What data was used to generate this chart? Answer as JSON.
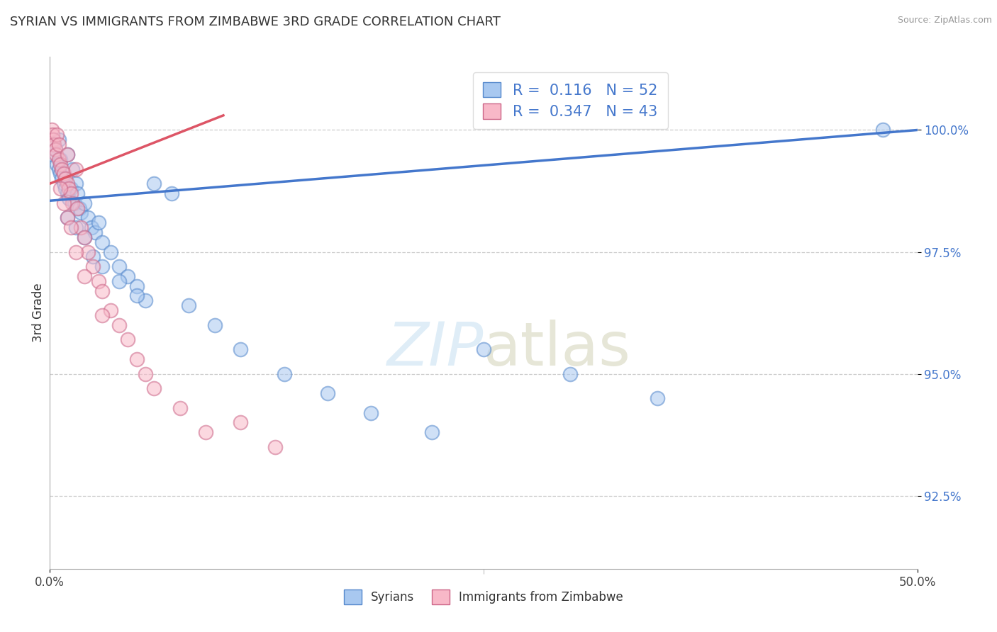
{
  "title": "SYRIAN VS IMMIGRANTS FROM ZIMBABWE 3RD GRADE CORRELATION CHART",
  "source": "Source: ZipAtlas.com",
  "ylabel": "3rd Grade",
  "ytick_values": [
    92.5,
    95.0,
    97.5,
    100.0
  ],
  "ylim_min": 91.0,
  "ylim_max": 101.5,
  "xlim_min": 0.0,
  "xlim_max": 50.0,
  "color_blue_fill": "#a8c8f0",
  "color_blue_edge": "#5588cc",
  "color_pink_fill": "#f8b8c8",
  "color_pink_edge": "#cc6688",
  "color_blue_line": "#4477cc",
  "color_pink_line": "#dd5566",
  "blue_line_x0": 0.0,
  "blue_line_y0": 98.55,
  "blue_line_x1": 50.0,
  "blue_line_y1": 100.0,
  "pink_line_x0": 0.0,
  "pink_line_y0": 98.9,
  "pink_line_x1": 10.0,
  "pink_line_y1": 100.3,
  "watermark_zip": "ZIP",
  "watermark_atlas": "atlas",
  "legend_label1": "R =  0.116   N = 52",
  "legend_label2": "R =  0.347   N = 43",
  "bottom_label1": "Syrians",
  "bottom_label2": "Immigrants from Zimbabwe",
  "syrians_x": [
    0.15,
    0.2,
    0.3,
    0.4,
    0.5,
    0.5,
    0.6,
    0.6,
    0.7,
    0.8,
    0.9,
    1.0,
    1.0,
    1.1,
    1.2,
    1.3,
    1.4,
    1.5,
    1.6,
    1.7,
    1.8,
    2.0,
    2.2,
    2.4,
    2.6,
    2.8,
    3.0,
    3.5,
    4.0,
    4.5,
    5.0,
    5.5,
    6.0,
    7.0,
    8.0,
    9.5,
    11.0,
    13.5,
    16.0,
    18.5,
    22.0,
    25.0,
    30.0,
    35.0,
    48.0,
    1.0,
    1.5,
    2.0,
    2.5,
    3.0,
    4.0,
    5.0
  ],
  "syrians_y": [
    99.5,
    99.7,
    99.6,
    99.3,
    99.8,
    99.2,
    99.4,
    99.1,
    99.0,
    98.9,
    98.8,
    98.7,
    99.5,
    98.6,
    98.8,
    99.2,
    98.5,
    98.9,
    98.7,
    98.4,
    98.3,
    98.5,
    98.2,
    98.0,
    97.9,
    98.1,
    97.7,
    97.5,
    97.2,
    97.0,
    96.8,
    96.5,
    98.9,
    98.7,
    96.4,
    96.0,
    95.5,
    95.0,
    94.6,
    94.2,
    93.8,
    95.5,
    95.0,
    94.5,
    100.0,
    98.2,
    98.0,
    97.8,
    97.4,
    97.2,
    96.9,
    96.6
  ],
  "zimbabwe_x": [
    0.1,
    0.15,
    0.2,
    0.25,
    0.3,
    0.35,
    0.4,
    0.5,
    0.5,
    0.6,
    0.7,
    0.8,
    0.9,
    1.0,
    1.0,
    1.1,
    1.2,
    1.3,
    1.5,
    1.6,
    1.8,
    2.0,
    2.2,
    2.5,
    2.8,
    3.0,
    3.5,
    4.0,
    4.5,
    5.0,
    5.5,
    6.0,
    7.5,
    9.0,
    11.0,
    13.0,
    0.6,
    0.8,
    1.0,
    1.2,
    1.5,
    2.0,
    3.0
  ],
  "zimbabwe_y": [
    100.0,
    99.9,
    99.8,
    99.7,
    99.6,
    99.5,
    99.9,
    99.7,
    99.4,
    99.3,
    99.2,
    99.1,
    99.0,
    98.9,
    99.5,
    98.8,
    98.7,
    98.5,
    99.2,
    98.4,
    98.0,
    97.8,
    97.5,
    97.2,
    96.9,
    96.7,
    96.3,
    96.0,
    95.7,
    95.3,
    95.0,
    94.7,
    94.3,
    93.8,
    94.0,
    93.5,
    98.8,
    98.5,
    98.2,
    98.0,
    97.5,
    97.0,
    96.2
  ]
}
